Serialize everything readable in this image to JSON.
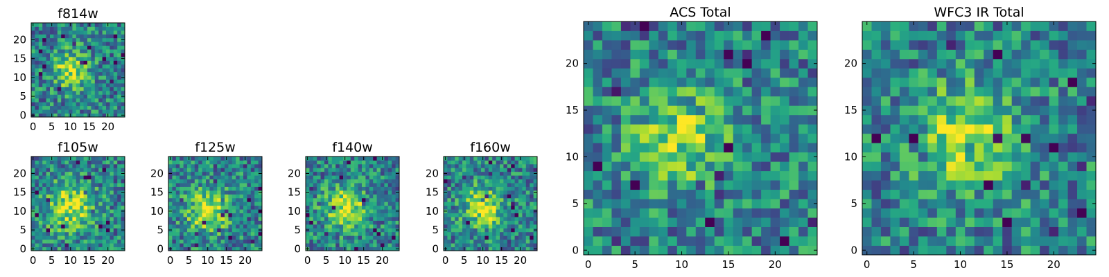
{
  "chart_data": [
    {
      "type": "heatmap",
      "title": "f814w",
      "xticks": [
        0,
        5,
        10,
        15,
        20
      ],
      "yticks": [
        0,
        5,
        10,
        15,
        20
      ],
      "xlim": [
        -0.5,
        24.5
      ],
      "ylim": [
        -0.5,
        24.5
      ],
      "grid": false,
      "colormap": "viridis",
      "blob": {
        "x": 10,
        "y": 12,
        "amplitude": 0.6,
        "spread": 3.5
      }
    },
    {
      "type": "heatmap",
      "title": "f105w",
      "xticks": [
        0,
        5,
        10,
        15,
        20
      ],
      "yticks": [
        0,
        5,
        10,
        15,
        20
      ],
      "xlim": [
        -0.5,
        24.5
      ],
      "ylim": [
        -0.5,
        24.5
      ],
      "grid": false,
      "colormap": "viridis",
      "blob": {
        "x": 10,
        "y": 11,
        "amplitude": 0.6,
        "spread": 4.5
      }
    },
    {
      "type": "heatmap",
      "title": "f125w",
      "xticks": [
        0,
        5,
        10,
        15,
        20
      ],
      "yticks": [
        0,
        5,
        10,
        15,
        20
      ],
      "xlim": [
        -0.5,
        24.5
      ],
      "ylim": [
        -0.5,
        24.5
      ],
      "grid": false,
      "colormap": "viridis",
      "blob": {
        "x": 10,
        "y": 10,
        "amplitude": 0.6,
        "spread": 4.0
      }
    },
    {
      "type": "heatmap",
      "title": "f140w",
      "xticks": [
        0,
        5,
        10,
        15,
        20
      ],
      "yticks": [
        0,
        5,
        10,
        15,
        20
      ],
      "xlim": [
        -0.5,
        24.5
      ],
      "ylim": [
        -0.5,
        24.5
      ],
      "grid": false,
      "colormap": "viridis",
      "blob": {
        "x": 10,
        "y": 11,
        "amplitude": 0.65,
        "spread": 3.8
      }
    },
    {
      "type": "heatmap",
      "title": "f160w",
      "xticks": [
        0,
        5,
        10,
        15,
        20
      ],
      "yticks": [
        0,
        5,
        10,
        15,
        20
      ],
      "xlim": [
        -0.5,
        24.5
      ],
      "ylim": [
        -0.5,
        24.5
      ],
      "grid": false,
      "colormap": "viridis",
      "blob": {
        "x": 10,
        "y": 11,
        "amplitude": 0.7,
        "spread": 3.5
      }
    },
    {
      "type": "heatmap",
      "title": "ACS Total",
      "xticks": [
        0,
        5,
        10,
        15,
        20
      ],
      "yticks": [
        0,
        5,
        10,
        15,
        20
      ],
      "xlim": [
        -0.5,
        24.5
      ],
      "ylim": [
        -0.5,
        24.5
      ],
      "grid": false,
      "colormap": "viridis",
      "blob": {
        "x": 10,
        "y": 12,
        "amplitude": 0.55,
        "spread": 3.5
      }
    },
    {
      "type": "heatmap",
      "title": "WFC3 IR Total",
      "xticks": [
        0,
        5,
        10,
        15,
        20
      ],
      "yticks": [
        0,
        5,
        10,
        15,
        20
      ],
      "xlim": [
        -0.5,
        24.5
      ],
      "ylim": [
        -0.5,
        24.5
      ],
      "grid": false,
      "colormap": "viridis",
      "blob": {
        "x": 11,
        "y": 12,
        "amplitude": 0.55,
        "spread": 4.0
      }
    }
  ]
}
